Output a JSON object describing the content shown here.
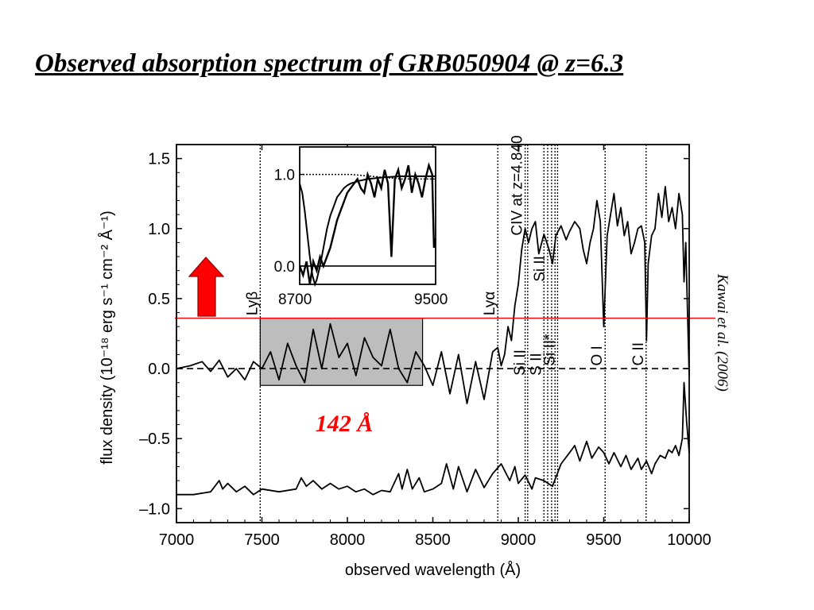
{
  "slide": {
    "title": "Observed absorption spectrum of GRB050904 @ z=6.3",
    "citation": "Kawai et al. (2006)"
  },
  "chart_data": {
    "type": "line",
    "xlabel": "observed wavelength (Å)",
    "ylabel": "flux density (10⁻¹⁸ erg s⁻¹ cm⁻² Å⁻¹)",
    "xlim": [
      7000,
      10000
    ],
    "ylim": [
      -1.1,
      1.6
    ],
    "xticks": [
      7000,
      7500,
      8000,
      8500,
      9000,
      9500,
      10000
    ],
    "yticks": [
      {
        "value": 1.5,
        "label": "1.5"
      },
      {
        "value": 1.0,
        "label": "1.0"
      },
      {
        "value": 0.5,
        "label": "0.5"
      },
      {
        "value": 0.0,
        "label": "0.0"
      },
      {
        "value": -0.5,
        "label": "–0.5"
      },
      {
        "value": -1.0,
        "label": "–1.0"
      }
    ],
    "series": [
      {
        "role": "spectrum",
        "x": [
          7000,
          7080,
          7150,
          7200,
          7250,
          7300,
          7350,
          7400,
          7450,
          7500,
          7550,
          7600,
          7650,
          7700,
          7750,
          7800,
          7850,
          7900,
          7950,
          8000,
          8050,
          8100,
          8150,
          8200,
          8250,
          8300,
          8350,
          8400,
          8450,
          8500,
          8550,
          8600,
          8650,
          8700,
          8750,
          8800,
          8850,
          8880,
          8900,
          8920,
          8940,
          8960,
          8980,
          9000,
          9020,
          9040,
          9060,
          9080,
          9100,
          9120,
          9150,
          9180,
          9200,
          9220,
          9250,
          9280,
          9300,
          9330,
          9360,
          9380,
          9400,
          9420,
          9440,
          9460,
          9480,
          9500,
          9520,
          9540,
          9560,
          9580,
          9600,
          9620,
          9640,
          9660,
          9680,
          9700,
          9720,
          9740,
          9750,
          9760,
          9780,
          9800,
          9820,
          9840,
          9860,
          9880,
          9900,
          9920,
          9940,
          9960,
          9970,
          9980,
          9990,
          10000
        ],
        "y": [
          0.0,
          0.02,
          0.05,
          -0.02,
          0.06,
          -0.06,
          0.0,
          -0.08,
          0.05,
          0.0,
          0.12,
          -0.08,
          0.18,
          0.02,
          -0.1,
          0.28,
          0.0,
          0.32,
          0.08,
          0.18,
          -0.05,
          0.22,
          0.08,
          0.02,
          0.28,
          0.0,
          -0.1,
          0.12,
          0.02,
          -0.12,
          0.12,
          -0.18,
          0.1,
          -0.25,
          0.05,
          -0.22,
          0.12,
          0.15,
          0.02,
          0.1,
          0.3,
          0.2,
          0.45,
          0.6,
          0.85,
          1.0,
          0.9,
          1.0,
          1.05,
          0.82,
          0.96,
          0.85,
          0.75,
          0.95,
          1.02,
          0.92,
          0.98,
          1.05,
          1.0,
          0.85,
          0.75,
          0.9,
          1.0,
          1.2,
          1.05,
          0.3,
          0.95,
          1.1,
          1.25,
          1.02,
          1.15,
          0.95,
          1.05,
          0.82,
          0.9,
          1.0,
          1.02,
          0.9,
          0.2,
          0.75,
          0.95,
          1.0,
          1.25,
          1.08,
          1.3,
          1.05,
          1.15,
          1.0,
          1.25,
          1.1,
          0.62,
          0.9,
          0.4,
          -0.05
        ]
      },
      {
        "role": "model-offset",
        "x": [
          7000,
          7100,
          7200,
          7250,
          7270,
          7300,
          7350,
          7400,
          7450,
          7500,
          7600,
          7700,
          7730,
          7760,
          7800,
          7850,
          7900,
          7950,
          8000,
          8050,
          8100,
          8150,
          8200,
          8250,
          8300,
          8320,
          8350,
          8380,
          8420,
          8450,
          8500,
          8550,
          8580,
          8620,
          8650,
          8700,
          8750,
          8800,
          8850,
          8900,
          8950,
          8980,
          9000,
          9040,
          9080,
          9100,
          9150,
          9200,
          9250,
          9300,
          9330,
          9360,
          9400,
          9430,
          9470,
          9500,
          9530,
          9560,
          9600,
          9630,
          9660,
          9700,
          9720,
          9750,
          9780,
          9800,
          9830,
          9860,
          9880,
          9900,
          9920,
          9940,
          9960,
          9970,
          9985,
          10000
        ],
        "y": [
          -0.9,
          -0.9,
          -0.88,
          -0.8,
          -0.86,
          -0.82,
          -0.88,
          -0.84,
          -0.9,
          -0.86,
          -0.88,
          -0.86,
          -0.78,
          -0.84,
          -0.8,
          -0.86,
          -0.82,
          -0.86,
          -0.84,
          -0.88,
          -0.86,
          -0.9,
          -0.87,
          -0.88,
          -0.75,
          -0.86,
          -0.72,
          -0.86,
          -0.78,
          -0.88,
          -0.86,
          -0.82,
          -0.68,
          -0.86,
          -0.7,
          -0.88,
          -0.72,
          -0.85,
          -0.75,
          -0.68,
          -0.8,
          -0.7,
          -0.82,
          -0.76,
          -0.86,
          -0.78,
          -0.8,
          -0.84,
          -0.68,
          -0.6,
          -0.55,
          -0.66,
          -0.52,
          -0.64,
          -0.56,
          -0.6,
          -0.68,
          -0.6,
          -0.7,
          -0.62,
          -0.72,
          -0.64,
          -0.72,
          -0.66,
          -0.75,
          -0.68,
          -0.62,
          -0.64,
          -0.58,
          -0.6,
          -0.55,
          -0.62,
          -0.5,
          -0.1,
          -0.38,
          -0.6
        ]
      }
    ],
    "zero_line": 0.0,
    "marker_line": {
      "y": 0.36,
      "color": "#ff0000"
    },
    "shaded_region": {
      "x": [
        7490,
        8440
      ],
      "y": [
        -0.12,
        0.36
      ],
      "label": "142 Å",
      "label_color": "#ff0000",
      "fill": "#bdbdbd"
    },
    "arrow": {
      "color": "#ff0000",
      "direction": "up"
    },
    "line_markers": [
      {
        "x": 7490,
        "label": "Lyβ",
        "label_y": 0.38
      },
      {
        "x": 8880,
        "label": "Lyα",
        "label_y": 0.38
      },
      {
        "x": 9040,
        "label": "CIV at z=4.840",
        "label_y": 0.95
      },
      {
        "x": 9055,
        "label": "Si II",
        "label_y": -0.05
      },
      {
        "x": 9150,
        "label": "S II",
        "label_y": -0.05
      },
      {
        "x": 9172,
        "label": "Si II",
        "label_y": 0.62
      },
      {
        "x": 9195,
        "label": "",
        "label_y": 0
      },
      {
        "x": 9215,
        "label": "",
        "label_y": 0
      },
      {
        "x": 9230,
        "label": "Si II*",
        "label_y": 0.02
      },
      {
        "x": 9508,
        "label": "O I",
        "label_y": 0.02
      },
      {
        "x": 9748,
        "label": "C II",
        "label_y": 0.02
      }
    ],
    "inset": {
      "xlim": [
        8700,
        9500
      ],
      "ylim": [
        -0.2,
        1.3
      ],
      "xticks": [
        8700,
        9500
      ],
      "yticks": [
        {
          "value": 1.0,
          "label": "1.0"
        },
        {
          "value": 0.0,
          "label": "0.0"
        }
      ],
      "data": {
        "x": [
          8700,
          8720,
          8740,
          8760,
          8780,
          8800,
          8820,
          8840,
          8860,
          8880,
          8900,
          8920,
          8940,
          8960,
          8980,
          9000,
          9020,
          9040,
          9060,
          9080,
          9100,
          9120,
          9140,
          9160,
          9180,
          9200,
          9220,
          9240,
          9260,
          9280,
          9300,
          9320,
          9340,
          9360,
          9380,
          9400,
          9420,
          9440,
          9460,
          9480,
          9490,
          9500
        ],
        "y": [
          0.0,
          -0.1,
          0.05,
          -0.2,
          0.05,
          -0.05,
          0.1,
          0.0,
          0.1,
          0.2,
          0.35,
          0.5,
          0.6,
          0.7,
          0.8,
          0.85,
          0.9,
          0.95,
          0.85,
          0.8,
          1.0,
          0.9,
          0.75,
          0.95,
          0.85,
          1.05,
          0.9,
          0.1,
          0.95,
          1.05,
          0.85,
          0.95,
          1.1,
          0.8,
          1.0,
          0.9,
          0.75,
          0.95,
          1.1,
          1.0,
          0.2,
          0.3
        ]
      },
      "model_dotted": {
        "x": [
          8700,
          9000,
          9300,
          9500
        ],
        "y": [
          1.0,
          1.0,
          0.95,
          0.95
        ]
      },
      "model_solid": {
        "x": [
          8700,
          8715,
          8730,
          8745,
          8760,
          8775,
          8790,
          8800,
          8820,
          8840,
          8860,
          8880,
          8900,
          8920,
          8940,
          8960,
          8980,
          9000,
          9050,
          9100,
          9150,
          9200,
          9300,
          9400,
          9500
        ],
        "y": [
          0.9,
          0.8,
          0.6,
          0.35,
          0.1,
          -0.1,
          -0.2,
          -0.15,
          0.0,
          0.2,
          0.4,
          0.55,
          0.65,
          0.75,
          0.8,
          0.85,
          0.88,
          0.9,
          0.93,
          0.95,
          0.96,
          0.97,
          0.98,
          0.98,
          0.98
        ]
      }
    }
  }
}
